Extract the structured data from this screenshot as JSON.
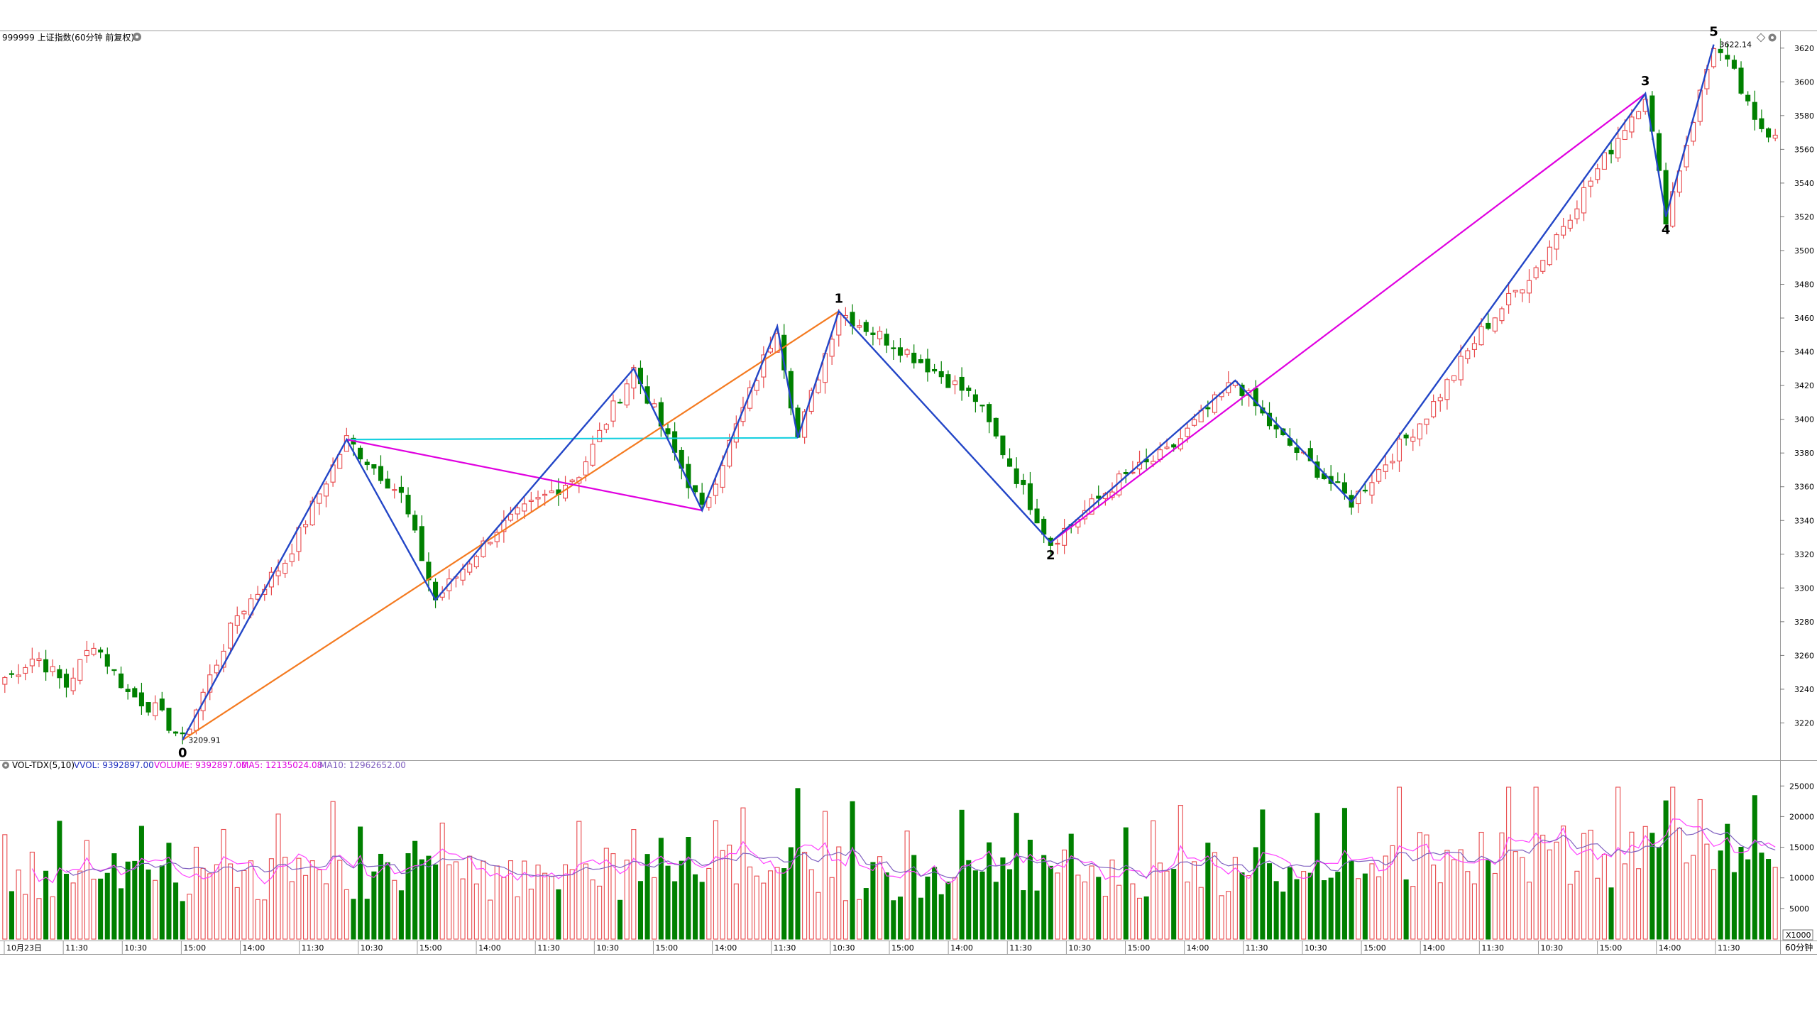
{
  "header": {
    "title": "999999 上证指数(60分钟 前复权)",
    "settings_icon": "gear-icon",
    "corner_icon": "diamond-icon"
  },
  "price_axis": {
    "ticks": [
      3220,
      3240,
      3260,
      3280,
      3300,
      3320,
      3340,
      3360,
      3380,
      3400,
      3420,
      3440,
      3460,
      3480,
      3500,
      3520,
      3540,
      3560,
      3580,
      3600,
      3620
    ]
  },
  "price_labels": {
    "low": "3209.91",
    "high": "3622.14"
  },
  "vol_header": {
    "name": "VOL-TDX(5,10)",
    "vvol": "VVOL: 9392897.00",
    "volume": "VOLUME: 9392897.00",
    "ma5": "MA5: 12135024.08",
    "ma10": "MA10: 12962652.00"
  },
  "vol_axis": {
    "ticks": [
      "25000",
      "20000",
      "15000",
      "10000",
      "5000"
    ],
    "unit": "X1000"
  },
  "x_axis": {
    "labels": [
      "10月23日",
      "11:30",
      "10:30",
      "15:00",
      "14:00",
      "11:30",
      "10:30",
      "15:00",
      "14:00",
      "11:30",
      "10:30",
      "15:00",
      "14:00",
      "11:30",
      "10:30",
      "15:00",
      "14:00",
      "11:30",
      "10:30",
      "15:00",
      "14:00",
      "11:30",
      "10:30",
      "15:00",
      "14:00",
      "11:30",
      "10:30",
      "15:00",
      "14:00",
      "11:30"
    ],
    "period": "60分钟"
  },
  "colors": {
    "up": "#e8494c",
    "down": "#008000",
    "wave_blue": "#2346c7",
    "wave_magenta": "#e000e0",
    "wave_orange": "#f47a20",
    "wave_cyan": "#18d0e0",
    "ma5": "#ff40ff",
    "ma10": "#8060c0"
  },
  "chart_data": {
    "type": "candlestick",
    "title": "999999 上证指数(60分钟 前复权)",
    "price_range": [
      3200,
      3630
    ],
    "volume_range_x1000": [
      0,
      27000
    ],
    "keypoints": [
      {
        "x": 0.5,
        "y": 3247
      },
      {
        "x": 4.5,
        "y": 3260
      },
      {
        "x": 9,
        "y": 3242
      },
      {
        "x": 13,
        "y": 3268
      },
      {
        "x": 18,
        "y": 3238
      },
      {
        "x": 22,
        "y": 3228
      },
      {
        "x": 26,
        "y": 3209.91
      },
      {
        "x": 34,
        "y": 3284
      },
      {
        "x": 41,
        "y": 3316
      },
      {
        "x": 50,
        "y": 3388
      },
      {
        "x": 58,
        "y": 3355
      },
      {
        "x": 63,
        "y": 3293
      },
      {
        "x": 72,
        "y": 3335
      },
      {
        "x": 84,
        "y": 3368
      },
      {
        "x": 92,
        "y": 3430
      },
      {
        "x": 102,
        "y": 3346
      },
      {
        "x": 113,
        "y": 3455
      },
      {
        "x": 116,
        "y": 3389
      },
      {
        "x": 122,
        "y": 3464
      },
      {
        "x": 132,
        "y": 3440
      },
      {
        "x": 142,
        "y": 3412
      },
      {
        "x": 153,
        "y": 3327
      },
      {
        "x": 163,
        "y": 3364
      },
      {
        "x": 170,
        "y": 3380
      },
      {
        "x": 180,
        "y": 3423
      },
      {
        "x": 186,
        "y": 3392
      },
      {
        "x": 197,
        "y": 3351
      },
      {
        "x": 208,
        "y": 3403
      },
      {
        "x": 216,
        "y": 3452
      },
      {
        "x": 224,
        "y": 3490
      },
      {
        "x": 233,
        "y": 3548
      },
      {
        "x": 240,
        "y": 3593
      },
      {
        "x": 243,
        "y": 3520
      },
      {
        "x": 250,
        "y": 3622.14
      },
      {
        "x": 253,
        "y": 3604
      },
      {
        "x": 256,
        "y": 3575
      },
      {
        "x": 258,
        "y": 3571
      }
    ],
    "wave_lines": {
      "blue": [
        [
          26,
          3209.91
        ],
        [
          50,
          3388
        ],
        [
          63,
          3293
        ],
        [
          92,
          3430
        ],
        [
          102,
          3346
        ],
        [
          113,
          3455
        ],
        [
          116,
          3389
        ],
        [
          122,
          3464
        ],
        [
          153,
          3327
        ],
        [
          180,
          3423
        ],
        [
          197,
          3351
        ],
        [
          240,
          3593
        ],
        [
          243,
          3520
        ],
        [
          250,
          3622.14
        ]
      ],
      "magenta": [
        [
          50,
          3388,
          102,
          3346
        ],
        [
          153,
          3327,
          240,
          3593
        ]
      ],
      "orange": [
        [
          26,
          3209.91,
          122,
          3464
        ]
      ],
      "cyan": [
        [
          50,
          3388,
          116,
          3389
        ]
      ]
    },
    "wave_labels": [
      {
        "text": "0",
        "x": 26,
        "y": 3209.91,
        "pos": "below"
      },
      {
        "text": "1",
        "x": 122,
        "y": 3464,
        "pos": "above"
      },
      {
        "text": "2",
        "x": 153,
        "y": 3327,
        "pos": "below"
      },
      {
        "text": "3",
        "x": 240,
        "y": 3593,
        "pos": "above"
      },
      {
        "text": "4",
        "x": 243,
        "y": 3520,
        "pos": "below"
      },
      {
        "text": "5",
        "x": 250,
        "y": 3622.14,
        "pos": "above"
      }
    ]
  }
}
